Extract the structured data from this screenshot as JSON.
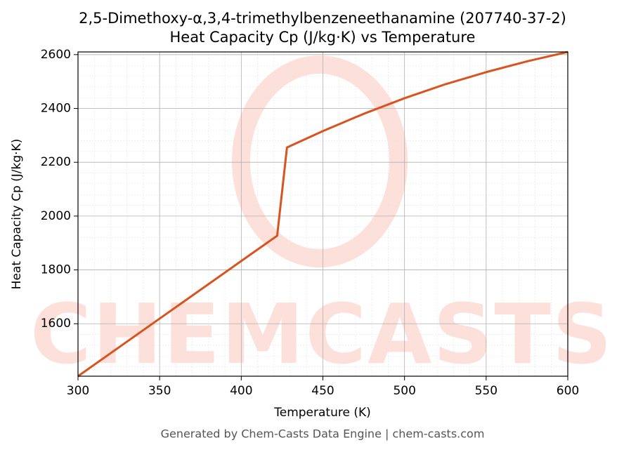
{
  "chart_data": {
    "type": "line",
    "title": "2,5-Dimethoxy-α,3,4-trimethylbenzeneethanamine (207740-37-2)",
    "subtitle": "Heat Capacity Cp (J/kg·K) vs Temperature",
    "x_label": "Temperature (K)",
    "y_label": "Heat Capacity Cp (J/kg·K)",
    "footer": "Generated by Chem-Casts Data Engine | chem-casts.com",
    "watermark": "CHEMCASTS",
    "x": [
      300,
      350,
      400,
      422,
      428,
      450,
      475,
      500,
      525,
      550,
      575,
      600
    ],
    "series": [
      {
        "name": "Cp",
        "color": "#d9531e",
        "values": [
          1405,
          1619,
          1833,
          1927,
          2255,
          2316,
          2380,
          2438,
          2490,
          2535,
          2575,
          2610
        ]
      }
    ],
    "xlim": [
      300,
      600
    ],
    "ylim": [
      1405,
      2610
    ],
    "xticks": [
      300,
      350,
      400,
      450,
      500,
      550,
      600
    ],
    "yticks": [
      1600,
      1800,
      2000,
      2200,
      2400,
      2600
    ],
    "grid": true
  }
}
